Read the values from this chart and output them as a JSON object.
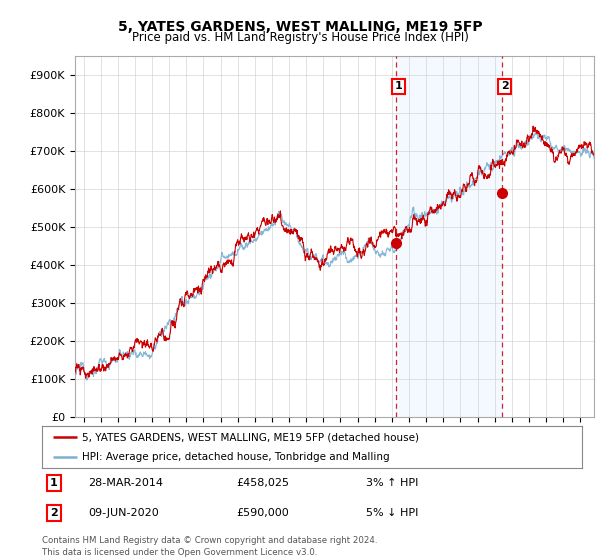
{
  "title": "5, YATES GARDENS, WEST MALLING, ME19 5FP",
  "subtitle": "Price paid vs. HM Land Registry's House Price Index (HPI)",
  "ylabel_ticks": [
    "£0",
    "£100K",
    "£200K",
    "£300K",
    "£400K",
    "£500K",
    "£600K",
    "£700K",
    "£800K",
    "£900K"
  ],
  "ytick_vals": [
    0,
    100000,
    200000,
    300000,
    400000,
    500000,
    600000,
    700000,
    800000,
    900000
  ],
  "ylim": [
    0,
    950000
  ],
  "xlim_start": 1995.5,
  "xlim_end": 2025.8,
  "hpi_color": "#7ab0d4",
  "price_color": "#cc0000",
  "marker1_x": 2014.23,
  "marker1_y": 458025,
  "marker2_x": 2020.44,
  "marker2_y": 590000,
  "marker1_label": "28-MAR-2014",
  "marker1_price": "£458,025",
  "marker1_hpi": "3% ↑ HPI",
  "marker2_label": "09-JUN-2020",
  "marker2_price": "£590,000",
  "marker2_hpi": "5% ↓ HPI",
  "legend_line1": "5, YATES GARDENS, WEST MALLING, ME19 5FP (detached house)",
  "legend_line2": "HPI: Average price, detached house, Tonbridge and Malling",
  "footer1": "Contains HM Land Registry data © Crown copyright and database right 2024.",
  "footer2": "This data is licensed under the Open Government Licence v3.0.",
  "background_color": "#ffffff",
  "plot_bg_color": "#ffffff",
  "grid_color": "#cccccc",
  "dashed_line_color": "#cc0000",
  "shade_color": "#ddeeff"
}
